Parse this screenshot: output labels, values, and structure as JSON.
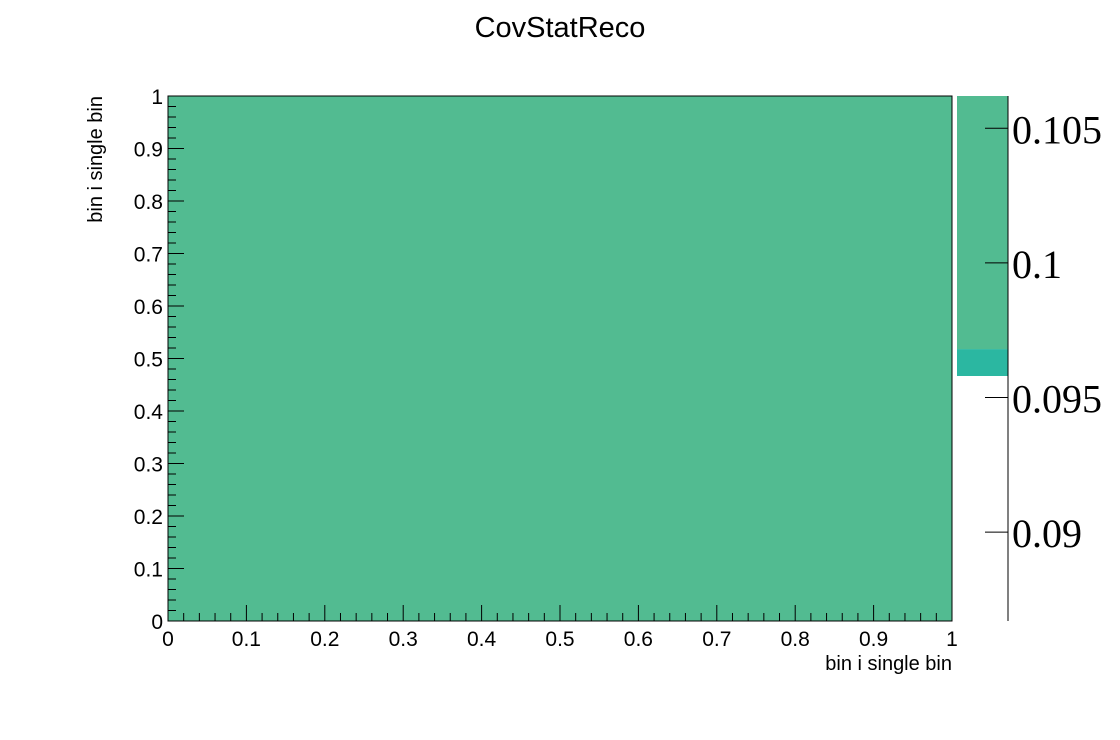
{
  "chart_data": {
    "type": "heatmap",
    "title": "CovStatReco",
    "xlabel": "bin i single bin",
    "ylabel": "bin i single bin",
    "xlim": [
      0,
      1
    ],
    "ylim": [
      0,
      1
    ],
    "x_tick_labels": [
      "0",
      "0.1",
      "0.2",
      "0.3",
      "0.4",
      "0.5",
      "0.6",
      "0.7",
      "0.8",
      "0.9",
      "1"
    ],
    "y_tick_labels": [
      "0",
      "0.1",
      "0.2",
      "0.3",
      "0.4",
      "0.5",
      "0.6",
      "0.7",
      "0.8",
      "0.9",
      "1"
    ],
    "cells": [
      {
        "x_range": [
          0,
          1
        ],
        "y_range": [
          0,
          1
        ],
        "value": 0.1008
      }
    ],
    "z_range": [
      0.0867,
      0.1062
    ],
    "z_tick_values": [
      0.09,
      0.095,
      0.1,
      0.105
    ],
    "z_tick_labels": [
      "0.09",
      "0.095",
      "0.1",
      "0.105"
    ],
    "cell_color": "#52bb91",
    "palette_bands": [
      {
        "z_range": [
          0.0958,
          0.0968
        ],
        "color": "#2bb7a1"
      },
      {
        "z_range": [
          0.0968,
          0.1062
        ],
        "color": "#52bb91"
      }
    ],
    "grid": false,
    "legend": "none"
  }
}
